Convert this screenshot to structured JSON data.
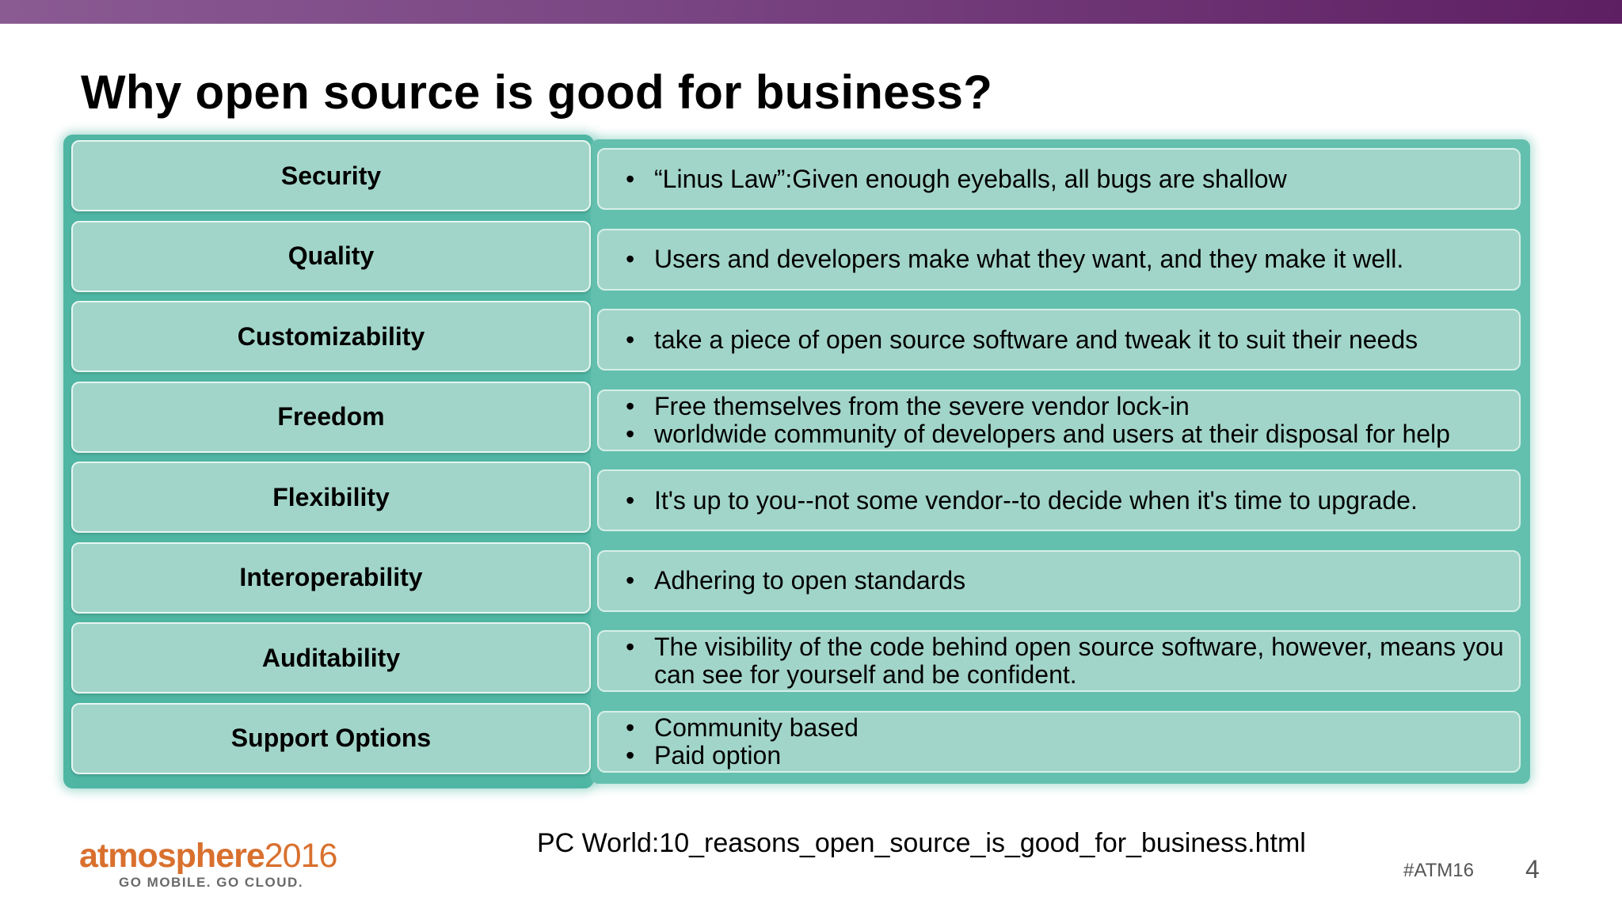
{
  "header": {
    "title": "Why open source is good for business?"
  },
  "rows": [
    {
      "category": "Security",
      "bullets": [
        "“Linus Law”:Given enough eyeballs, all bugs are shallow"
      ]
    },
    {
      "category": "Quality",
      "bullets": [
        "Users and developers make what they want, and they make it well."
      ]
    },
    {
      "category": "Customizability",
      "bullets": [
        "take a piece of open source software and tweak it to suit their needs"
      ]
    },
    {
      "category": "Freedom",
      "bullets": [
        "Free themselves from the severe vendor lock-in",
        "worldwide community of developers and users at their disposal for help"
      ]
    },
    {
      "category": "Flexibility",
      "bullets": [
        "It's up to you--not some vendor--to decide when it's time to upgrade."
      ]
    },
    {
      "category": "Interoperability",
      "bullets": [
        "Adhering to open standards"
      ]
    },
    {
      "category": "Auditability",
      "bullets": [
        "The visibility of the code behind open source software, however, means you can see for yourself and be confident."
      ]
    },
    {
      "category": "Support Options",
      "bullets": [
        "Community based",
        "Paid option"
      ]
    }
  ],
  "footer": {
    "source": "PC World:10_reasons_open_source_is_good_for_business.html",
    "logo_name": "atmosphere",
    "logo_year": "2016",
    "logo_tagline": "GO MOBILE. GO CLOUD.",
    "hashtag": "#ATM16",
    "page_number": "4"
  },
  "colors": {
    "top_bar": "#7a4683",
    "cell_fill": "#a2d5c9",
    "cell_glow": "#4fb6a4",
    "logo_orange": "#d9702e"
  }
}
